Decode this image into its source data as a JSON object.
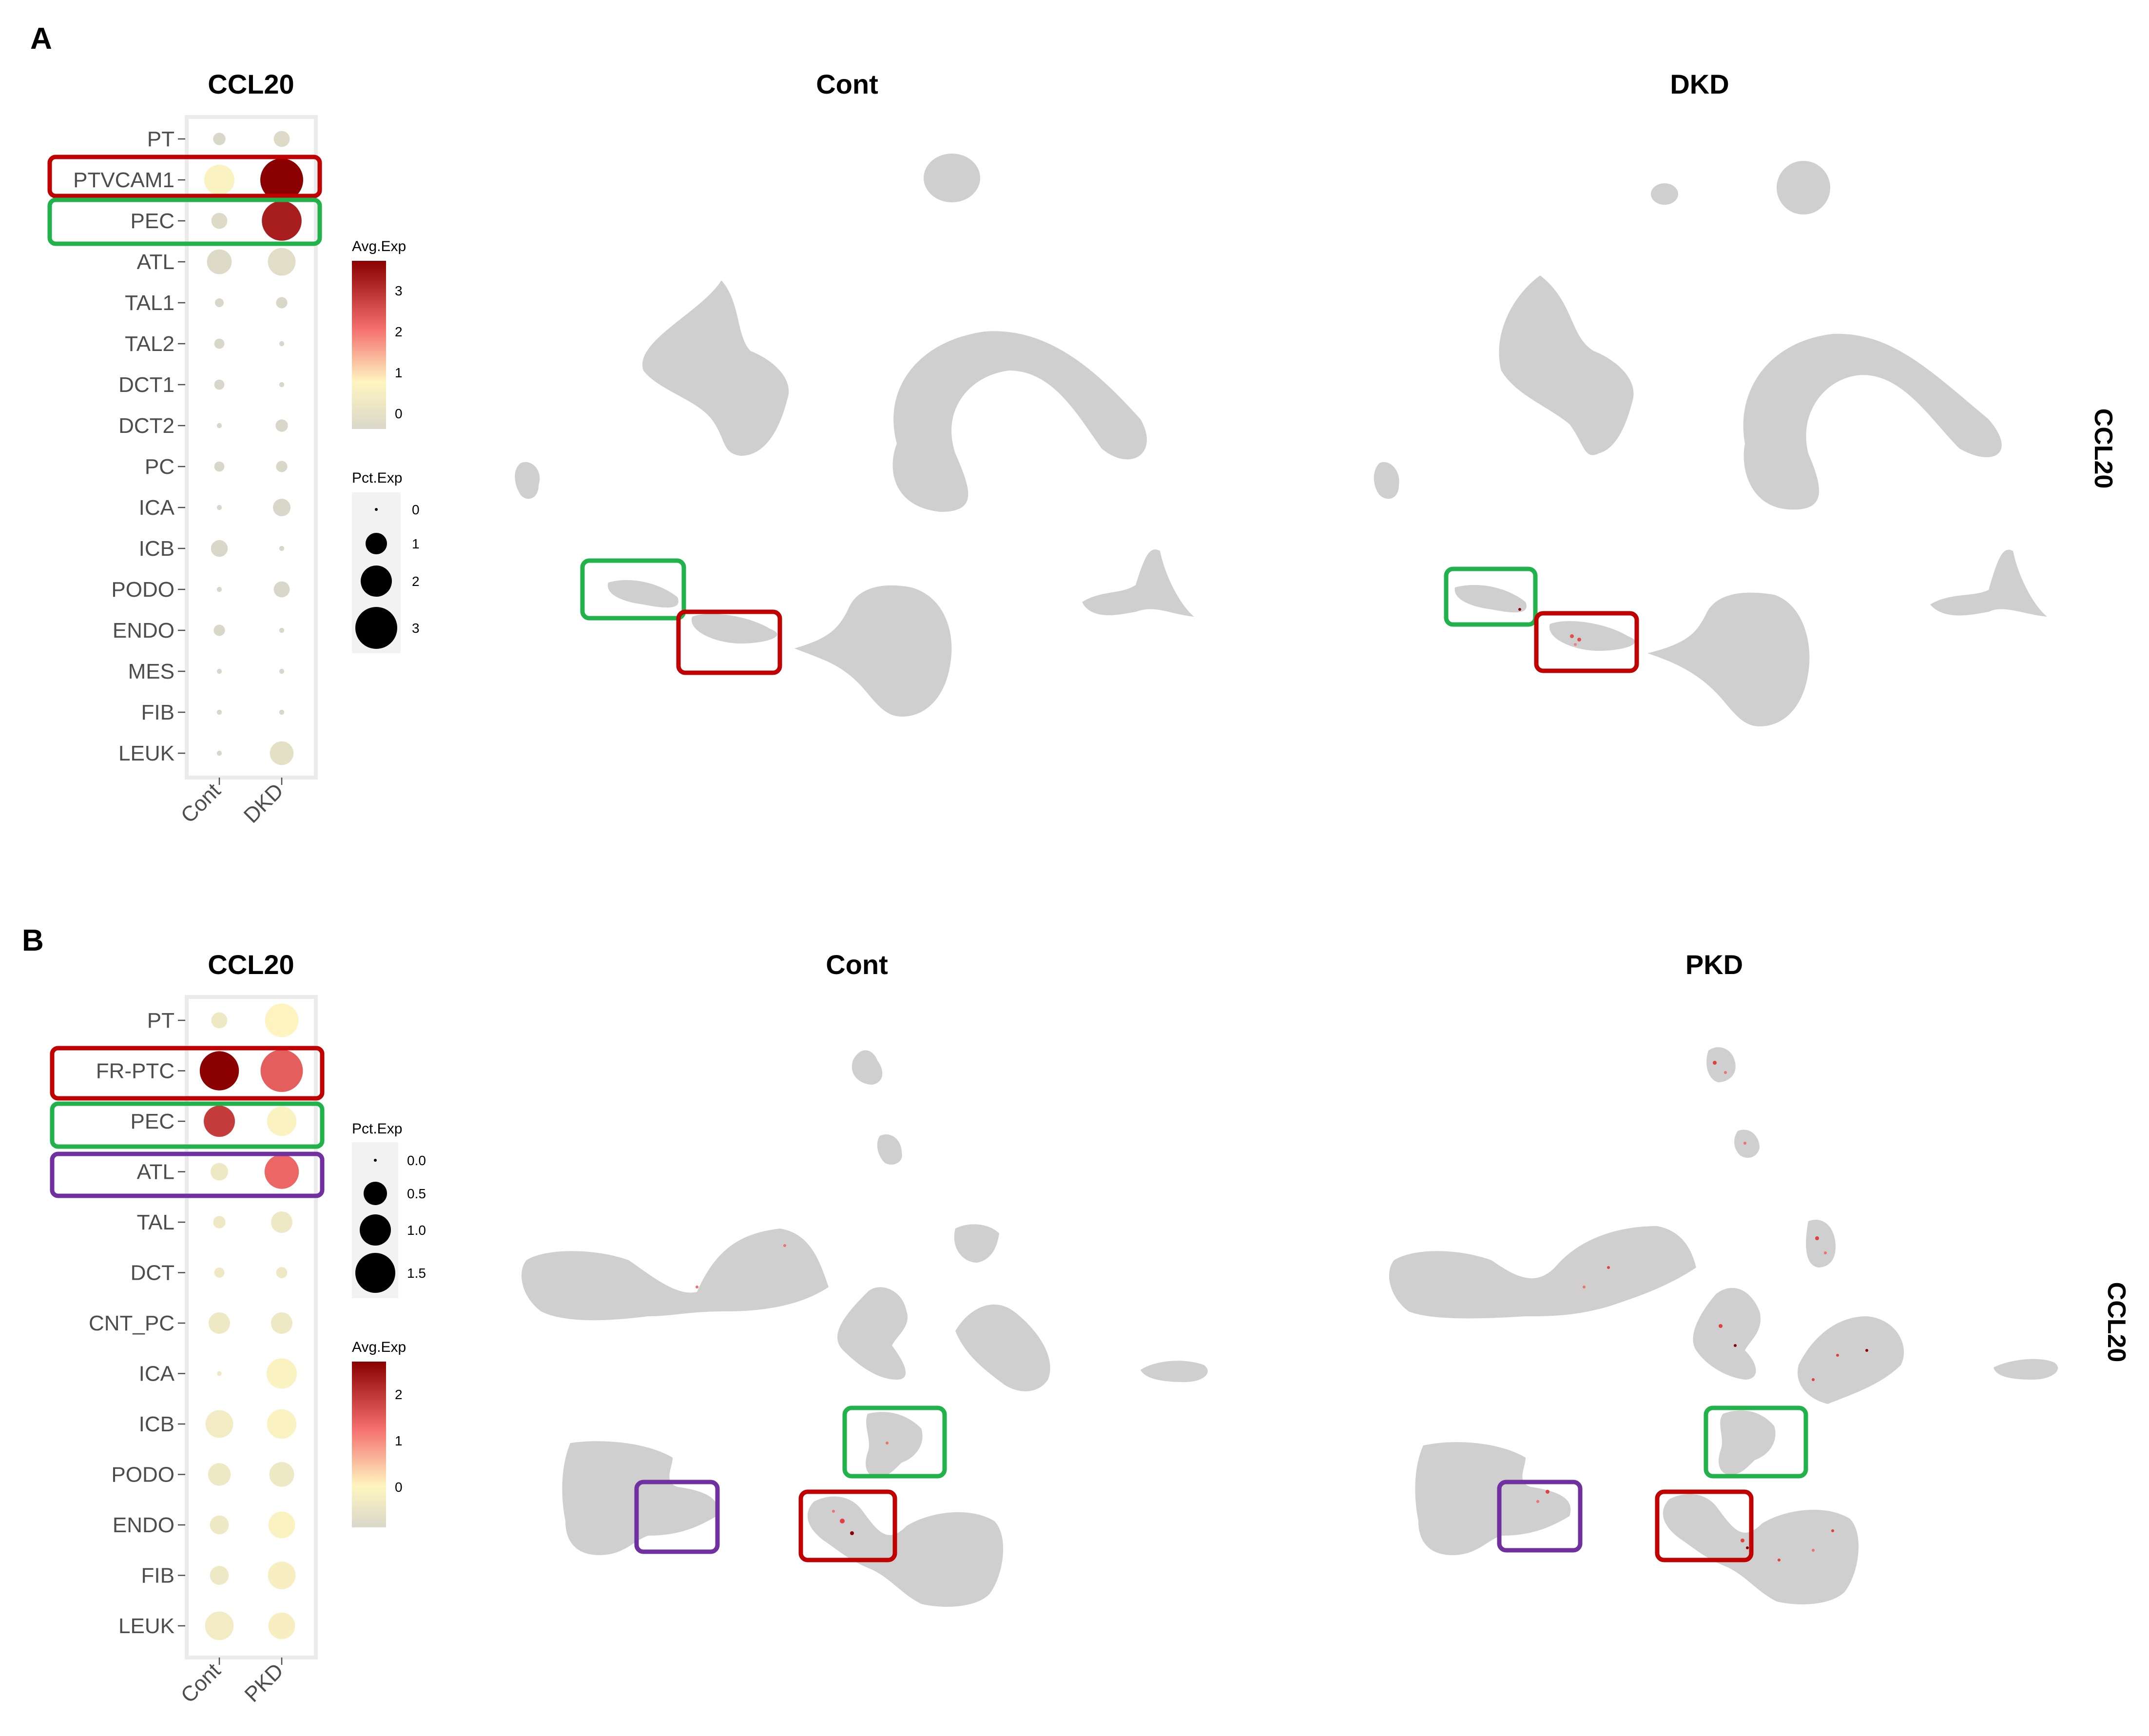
{
  "colors": {
    "highlight_red": "#c00000",
    "highlight_green": "#21b24b",
    "highlight_purple": "#7030a0",
    "umap_grey": "#cfcfcf",
    "avgexp_low": "#d9d7c9",
    "avgexp_mid": "#fff5c0",
    "avgexp_mid2": "#f46d6d",
    "avgexp_high": "#8b0000"
  },
  "chart_data": [
    {
      "panel": "A",
      "type": "dotplot",
      "title": "CCL20",
      "groups": [
        "Cont",
        "DKD"
      ],
      "cell_types": [
        "PT",
        "PTVCAM1",
        "PEC",
        "ATL",
        "TAL1",
        "TAL2",
        "DCT1",
        "DCT2",
        "PC",
        "ICA",
        "ICB",
        "PODO",
        "ENDO",
        "MES",
        "FIB",
        "LEUK"
      ],
      "avg_exp": [
        [
          0.0,
          0.1
        ],
        [
          0.9,
          3.6
        ],
        [
          0.1,
          3.2
        ],
        [
          0.1,
          0.2
        ],
        [
          0.0,
          0.0
        ],
        [
          0.0,
          0.0
        ],
        [
          0.0,
          0.0
        ],
        [
          0.0,
          0.0
        ],
        [
          0.0,
          0.0
        ],
        [
          0.0,
          0.0
        ],
        [
          0.0,
          0.0
        ],
        [
          0.0,
          0.0
        ],
        [
          0.0,
          0.0
        ],
        [
          0.0,
          0.0
        ],
        [
          0.0,
          0.0
        ],
        [
          0.0,
          0.3
        ]
      ],
      "pct_exp": [
        [
          0.3,
          0.5
        ],
        [
          1.8,
          3.6
        ],
        [
          0.5,
          3.1
        ],
        [
          1.2,
          1.5
        ],
        [
          0.15,
          0.25
        ],
        [
          0.2,
          0.05
        ],
        [
          0.2,
          0.05
        ],
        [
          0.05,
          0.3
        ],
        [
          0.2,
          0.25
        ],
        [
          0.05,
          0.6
        ],
        [
          0.55,
          0.05
        ],
        [
          0.05,
          0.5
        ],
        [
          0.25,
          0.05
        ],
        [
          0.05,
          0.05
        ],
        [
          0.05,
          0.05
        ],
        [
          0.05,
          1.1
        ]
      ],
      "highlights": [
        {
          "cell_type": "PTVCAM1",
          "color": "red"
        },
        {
          "cell_type": "PEC",
          "color": "green"
        }
      ],
      "legends": {
        "avg_exp": {
          "title": "Avg.Exp",
          "ticks": [
            "3",
            "2",
            "1",
            "0"
          ],
          "range": [
            0,
            3.6
          ]
        },
        "pct_exp": {
          "title": "Pct.Exp",
          "ticks": [
            "0",
            "1",
            "2",
            "3"
          ]
        }
      },
      "umaps": [
        {
          "title": "Cont",
          "highlights": [
            "green",
            "red"
          ]
        },
        {
          "title": "DKD",
          "highlights": [
            "green",
            "red"
          ]
        }
      ],
      "side_label": "CCL20"
    },
    {
      "panel": "B",
      "type": "dotplot",
      "title": "CCL20",
      "groups": [
        "Cont",
        "PKD"
      ],
      "cell_types": [
        "PT",
        "FR-PTC",
        "PEC",
        "ATL",
        "TAL",
        "DCT",
        "CNT_PC",
        "ICA",
        "ICB",
        "PODO",
        "ENDO",
        "FIB",
        "LEUK"
      ],
      "avg_exp": [
        [
          0.0,
          0.4
        ],
        [
          2.7,
          1.6
        ],
        [
          2.0,
          0.3
        ],
        [
          0.0,
          1.5
        ],
        [
          0.0,
          0.0
        ],
        [
          0.0,
          0.0
        ],
        [
          0.0,
          0.0
        ],
        [
          0.0,
          0.3
        ],
        [
          0.1,
          0.3
        ],
        [
          0.0,
          0.0
        ],
        [
          0.0,
          0.3
        ],
        [
          0.0,
          0.2
        ],
        [
          0.1,
          0.2
        ]
      ],
      "pct_exp": [
        [
          0.25,
          1.1
        ],
        [
          1.5,
          1.75
        ],
        [
          0.95,
          0.85
        ],
        [
          0.3,
          1.15
        ],
        [
          0.15,
          0.45
        ],
        [
          0.1,
          0.12
        ],
        [
          0.45,
          0.45
        ],
        [
          0.02,
          0.9
        ],
        [
          0.75,
          0.85
        ],
        [
          0.5,
          0.6
        ],
        [
          0.35,
          0.7
        ],
        [
          0.35,
          0.75
        ],
        [
          0.8,
          0.7
        ]
      ],
      "highlights": [
        {
          "cell_type": "FR-PTC",
          "color": "red"
        },
        {
          "cell_type": "PEC",
          "color": "green"
        },
        {
          "cell_type": "ATL",
          "color": "purple"
        }
      ],
      "legends": {
        "pct_exp": {
          "title": "Pct.Exp",
          "ticks": [
            "0.0",
            "0.5",
            "1.0",
            "1.5"
          ]
        },
        "avg_exp": {
          "title": "Avg.Exp",
          "ticks": [
            "2",
            "1",
            "0"
          ],
          "range": [
            -0.5,
            2.7
          ]
        }
      },
      "umaps": [
        {
          "title": "Cont",
          "highlights": [
            "purple",
            "red",
            "green"
          ]
        },
        {
          "title": "PKD",
          "highlights": [
            "purple",
            "red",
            "green"
          ]
        }
      ],
      "side_label": "CCL20"
    }
  ],
  "panel_letters": [
    "A",
    "B"
  ]
}
